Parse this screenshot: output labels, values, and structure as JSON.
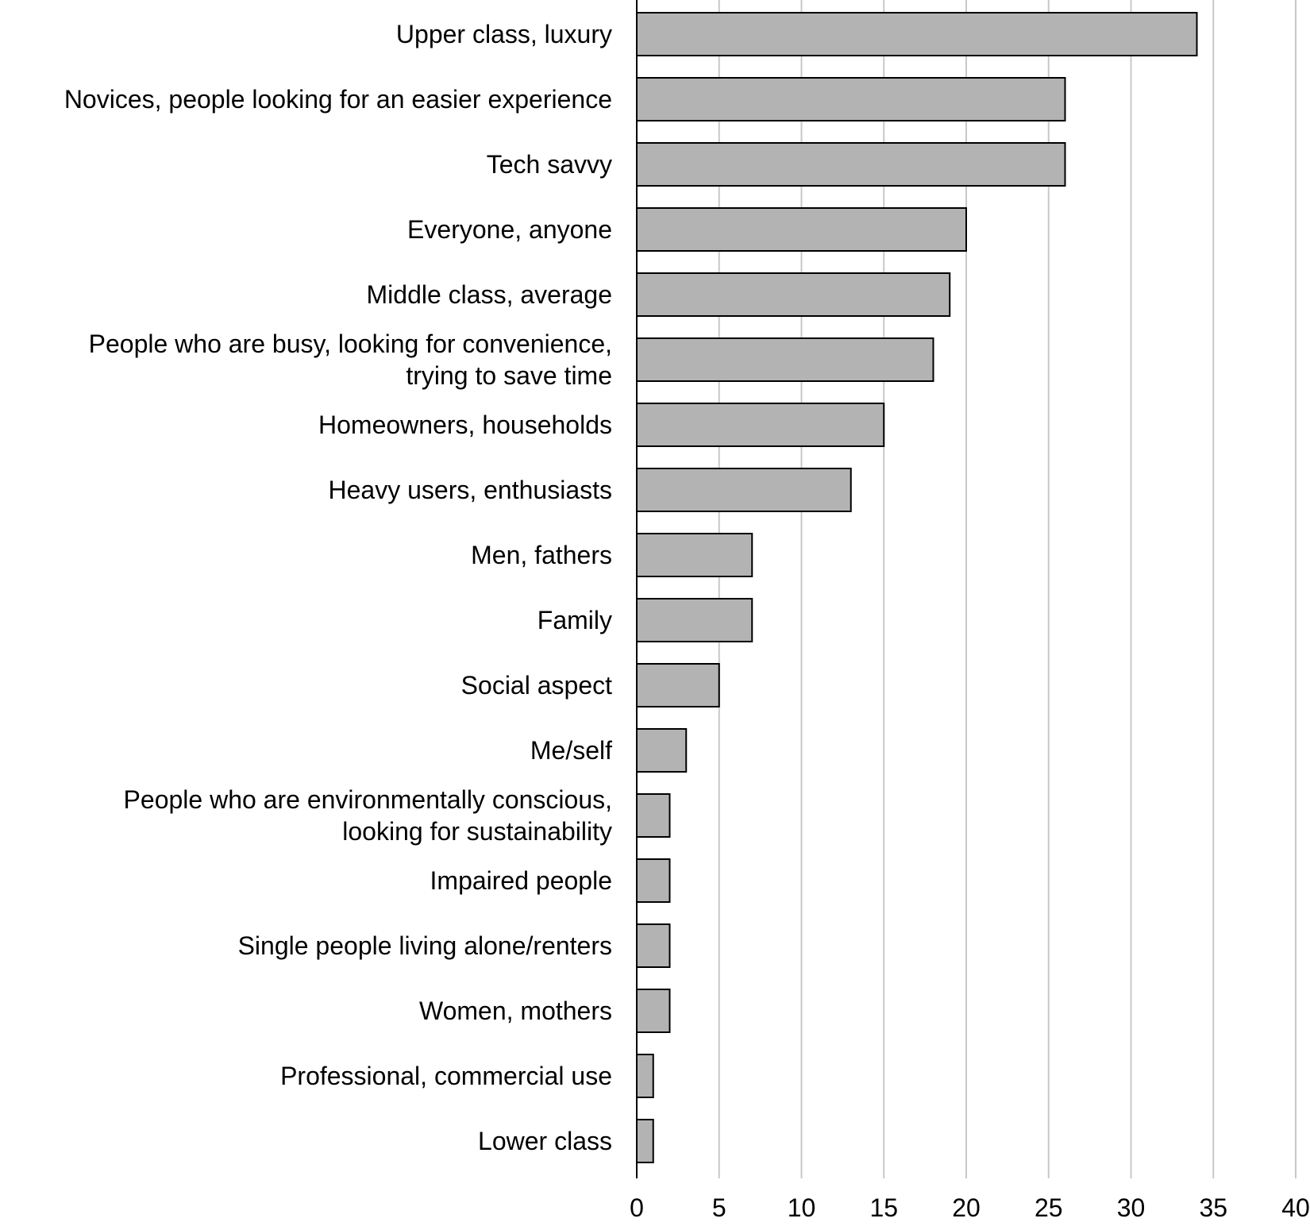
{
  "chart_data": {
    "type": "bar",
    "orientation": "horizontal",
    "title": "",
    "xlabel": "",
    "ylabel": "",
    "categories": [
      [
        "Upper class, luxury"
      ],
      [
        "Novices, people looking for an easier experience"
      ],
      [
        "Tech savvy"
      ],
      [
        "Everyone, anyone"
      ],
      [
        "Middle class, average"
      ],
      [
        "People who are busy, looking for convenience,",
        "trying to save time"
      ],
      [
        "Homeowners, households"
      ],
      [
        "Heavy users, enthusiasts"
      ],
      [
        "Men, fathers"
      ],
      [
        "Family"
      ],
      [
        "Social aspect"
      ],
      [
        "Me/self"
      ],
      [
        "People who are environmentally conscious,",
        "looking for sustainability"
      ],
      [
        "Impaired people"
      ],
      [
        "Single people living alone/renters"
      ],
      [
        "Women, mothers"
      ],
      [
        "Professional, commercial use"
      ],
      [
        "Lower class"
      ]
    ],
    "values": [
      34,
      26,
      26,
      20,
      19,
      18,
      15,
      13,
      7,
      7,
      5,
      3,
      2,
      2,
      2,
      2,
      1,
      1
    ],
    "xlim": [
      0,
      40
    ],
    "xticks": [
      "0",
      "5",
      "10",
      "15",
      "20",
      "25",
      "30",
      "35",
      "40"
    ],
    "grid": "vertical",
    "legend": "none",
    "colors": {
      "bar_fill": "#b3b3b3",
      "bar_stroke": "#000000",
      "grid": "#c8c8c8",
      "axis": "#000000"
    }
  }
}
